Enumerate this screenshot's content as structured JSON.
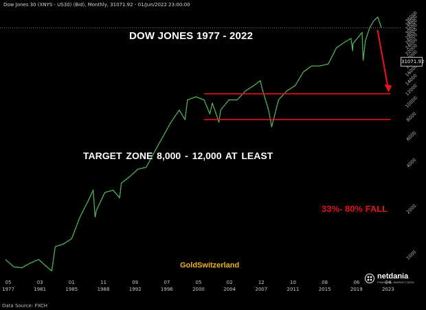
{
  "header": {
    "instrument_line": "Dow Jones 30 (XNYS - US30) (Bid), Monthly, 31071.92 - 01/Jun/2022 23:00:00"
  },
  "annotations": {
    "title": "DOW JONES 1977 - 2022",
    "target_zone": "TARGET  ZONE 8,000 - 12,000 AT LEAST",
    "fall": "33%- 80% FALL",
    "watermark": "GoldSwitzerland"
  },
  "price_tag": "31071.92",
  "footer": {
    "source": "Data Source: FXCH"
  },
  "logo": {
    "name": "netdania",
    "tagline": "FINANCIAL MARKET DATA"
  },
  "colors": {
    "background": "#000000",
    "up": "#3fae4a",
    "down": "#c8c8c8",
    "arrow": "#e0141c",
    "brand": "#f2b51a"
  },
  "chart_data": {
    "type": "line",
    "title": "DOW JONES 1977 - 2022",
    "x_tick_labels": [
      {
        "month": "05",
        "year": "1977"
      },
      {
        "month": "03",
        "year": "1981"
      },
      {
        "month": "01",
        "year": "1985"
      },
      {
        "month": "11",
        "year": "1988"
      },
      {
        "month": "09",
        "year": "1992"
      },
      {
        "month": "07",
        "year": "1996"
      },
      {
        "month": "05",
        "year": "2000"
      },
      {
        "month": "02",
        "year": "2004"
      },
      {
        "month": "12",
        "year": "2007"
      },
      {
        "month": "10",
        "year": "2011"
      },
      {
        "month": "08",
        "year": "2015"
      },
      {
        "month": "06",
        "year": "2019"
      },
      {
        "month": "04",
        "year": "2023"
      }
    ],
    "xlim": [
      1977.0,
      2024.5
    ],
    "y_scale": "log",
    "ylim": [
      800,
      40000
    ],
    "y_tick_labels": [
      "1000",
      "2000",
      "4000",
      "6000",
      "8000",
      "10000",
      "12000",
      "14000",
      "16000",
      "18000",
      "20000",
      "22000",
      "24000",
      "26000",
      "28000",
      "30000",
      "32000",
      "34000",
      "36000"
    ],
    "grid": false,
    "series": [
      {
        "x": [
          1977.0,
          1978.0,
          1979.0,
          1980.0,
          1981.0,
          1982.0,
          1982.6,
          1983.0,
          1984.0,
          1985.0,
          1986.0,
          1987.0,
          1987.6,
          1987.83,
          1988.0,
          1989.0,
          1990.0,
          1990.8,
          1991.0,
          1992.0,
          1993.0,
          1994.0,
          1995.0,
          1996.0,
          1997.0,
          1998.0,
          1998.7,
          1999.0,
          2000.0,
          2001.0,
          2001.7,
          2002.0,
          2002.8,
          2003.0,
          2004.0,
          2005.0,
          2006.0,
          2007.0,
          2007.8,
          2008.0,
          2008.8,
          2009.17,
          2010.0,
          2011.0,
          2012.0,
          2013.0,
          2014.0,
          2015.0,
          2016.0,
          2017.0,
          2018.0,
          2018.75,
          2018.95,
          2019.0,
          2020.0,
          2020.1,
          2020.22,
          2020.5,
          2021.0,
          2021.5,
          2022.0,
          2022.42
        ],
        "y": [
          950,
          850,
          840,
          900,
          950,
          850,
          800,
          1150,
          1200,
          1300,
          1800,
          2300,
          2700,
          1800,
          2000,
          2600,
          2700,
          2400,
          3000,
          3300,
          3700,
          3800,
          4800,
          6000,
          7500,
          9000,
          7800,
          10500,
          11000,
          10500,
          8500,
          10000,
          7500,
          9000,
          10500,
          10500,
          12000,
          13000,
          14000,
          12500,
          9000,
          7000,
          10500,
          12000,
          13000,
          16000,
          17500,
          17500,
          18000,
          23000,
          25000,
          26500,
          22000,
          24500,
          28500,
          29000,
          19000,
          25500,
          31000,
          34500,
          36500,
          31071.92
        ]
      }
    ],
    "levels": [
      11500,
      7800
    ],
    "level_range": [
      2001.0,
      2023.5
    ]
  }
}
